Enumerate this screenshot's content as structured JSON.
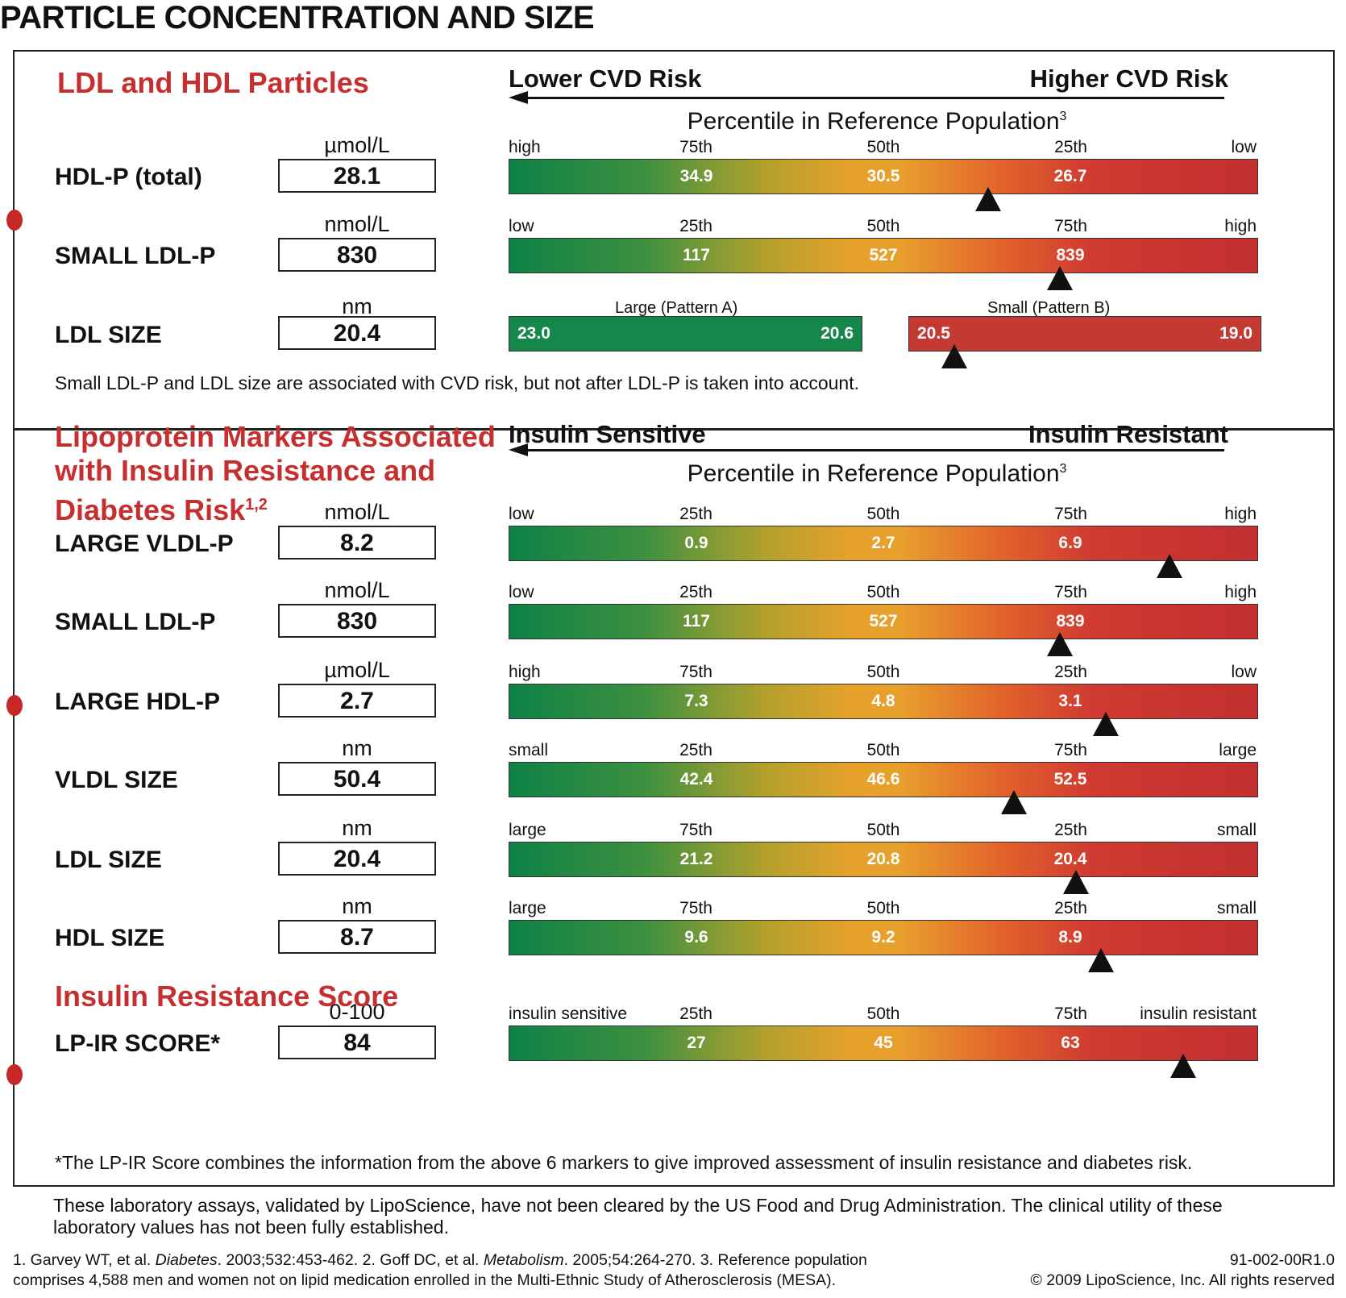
{
  "title": "PARTICLE CONCENTRATION AND SIZE",
  "top_section": {
    "heading": "LDL and HDL Particles",
    "risk_left": "Lower CVD Risk",
    "risk_right": "Higher CVD Risk",
    "percentile_title": "Percentile in Reference Population",
    "percentile_sup": "3",
    "markers": [
      {
        "name": "HDL-P (total)",
        "unit": "µmol/L",
        "value": "28.1",
        "ticks": [
          "high",
          "75th",
          "50th",
          "25th",
          "low"
        ],
        "bar_values": [
          "34.9",
          "30.5",
          "26.7"
        ],
        "marker_pos": 0.64
      },
      {
        "name": "SMALL LDL-P",
        "unit": "nmol/L",
        "value": "830",
        "ticks": [
          "low",
          "25th",
          "50th",
          "75th",
          "high"
        ],
        "bar_values": [
          "117",
          "527",
          "839"
        ],
        "marker_pos": 0.735
      }
    ],
    "ldl_size": {
      "name": "LDL SIZE",
      "unit": "nm",
      "value": "20.4",
      "pattern_a_label": "Large (Pattern A)",
      "pattern_a_left": "23.0",
      "pattern_a_right": "20.6",
      "pattern_b_label": "Small (Pattern B)",
      "pattern_b_left": "20.5",
      "pattern_b_right": "19.0",
      "marker_pos": 0.13
    },
    "note": "Small LDL-P and LDL size are associated with CVD risk, but not after LDL-P is taken into account."
  },
  "bottom_section": {
    "heading_lines": [
      "Lipoprotein Markers Associated",
      "with Insulin Resistance and",
      "Diabetes Risk"
    ],
    "heading_sup": "1,2",
    "risk_left": "Insulin Sensitive",
    "risk_right": "Insulin Resistant",
    "percentile_title": "Percentile in Reference Population",
    "percentile_sup": "3",
    "markers": [
      {
        "name": "LARGE VLDL-P",
        "unit": "nmol/L",
        "value": "8.2",
        "ticks": [
          "low",
          "25th",
          "50th",
          "75th",
          "high"
        ],
        "bar_values": [
          "0.9",
          "2.7",
          "6.9"
        ],
        "marker_pos": 0.882
      },
      {
        "name": "SMALL LDL-P",
        "unit": "nmol/L",
        "value": "830",
        "ticks": [
          "low",
          "25th",
          "50th",
          "75th",
          "high"
        ],
        "bar_values": [
          "117",
          "527",
          "839"
        ],
        "marker_pos": 0.735
      },
      {
        "name": "LARGE HDL-P",
        "unit": "µmol/L",
        "value": "2.7",
        "ticks": [
          "high",
          "75th",
          "50th",
          "25th",
          "low"
        ],
        "bar_values": [
          "7.3",
          "4.8",
          "3.1"
        ],
        "marker_pos": 0.797
      },
      {
        "name": "VLDL SIZE",
        "unit": "nm",
        "value": "50.4",
        "ticks": [
          "small",
          "25th",
          "50th",
          "75th",
          "large"
        ],
        "bar_values": [
          "42.4",
          "46.6",
          "52.5"
        ],
        "marker_pos": 0.674
      },
      {
        "name": "LDL SIZE",
        "unit": "nm",
        "value": "20.4",
        "ticks": [
          "large",
          "75th",
          "50th",
          "25th",
          "small"
        ],
        "bar_values": [
          "21.2",
          "20.8",
          "20.4"
        ],
        "marker_pos": 0.757
      },
      {
        "name": "HDL SIZE",
        "unit": "nm",
        "value": "8.7",
        "ticks": [
          "large",
          "75th",
          "50th",
          "25th",
          "small"
        ],
        "bar_values": [
          "9.6",
          "9.2",
          "8.9"
        ],
        "marker_pos": 0.79
      }
    ],
    "ir_heading": "Insulin Resistance Score",
    "lpir": {
      "name": "LP-IR SCORE*",
      "unit": "0-100",
      "value": "84",
      "ticks": [
        "insulin sensitive",
        "25th",
        "50th",
        "75th",
        "insulin resistant"
      ],
      "bar_values": [
        "27",
        "45",
        "63"
      ],
      "marker_pos": 0.9
    },
    "note": "*The LP-IR Score combines the information from the above 6 markers to give improved assessment of insulin resistance and diabetes risk."
  },
  "disclaimer": "These laboratory assays, validated by LipoScience, have not been cleared by the US Food and Drug Administration. The clinical utility of these laboratory values has not been fully established.",
  "footnotes": {
    "ref1_pre": "1. Garvey WT, et al. ",
    "ref1_journal": "Diabetes",
    "ref1_post": ". 2003;532:453-462.  2. Goff DC, et al. ",
    "ref2_journal": "Metabolism",
    "ref2_post": ". 2005;54:264-270.  3. Reference population",
    "line2": "comprises 4,588 men and women not on lipid medication enrolled in the Multi-Ethnic Study of Atherosclerosis (MESA).",
    "doc_code": "91-002-00R1.0",
    "copyright": "© 2009 LipoScience, Inc.  All rights reserved"
  },
  "colors": {
    "accent_red": "#c62f2f",
    "bar_green": "#0e8246",
    "bar_orange": "#e8a02c",
    "bar_red": "#c2302f"
  }
}
